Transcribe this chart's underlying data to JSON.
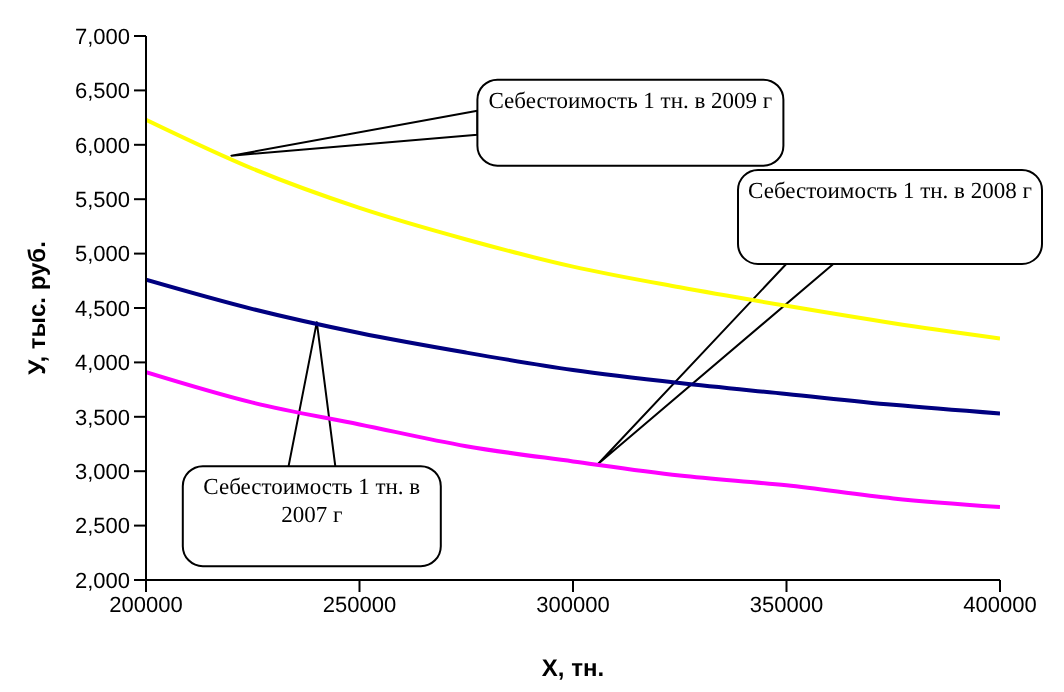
{
  "chart_data": {
    "type": "line",
    "xlabel": "Х, тн.",
    "ylabel": "У, тыс. руб.",
    "x": [
      200000,
      225000,
      250000,
      275000,
      300000,
      325000,
      350000,
      375000,
      400000
    ],
    "series": [
      {
        "color": "#ffff00",
        "values": [
          6230,
          5780,
          5420,
          5130,
          4880,
          4690,
          4520,
          4360,
          4220
        ]
      },
      {
        "color": "#000080",
        "values": [
          4760,
          4490,
          4270,
          4090,
          3930,
          3810,
          3710,
          3610,
          3530
        ]
      },
      {
        "color": "#ff00ff",
        "values": [
          3910,
          3630,
          3430,
          3230,
          3090,
          2960,
          2870,
          2750,
          2670
        ]
      }
    ],
    "xlim": [
      200000,
      400000
    ],
    "xticks": [
      200000,
      250000,
      300000,
      350000,
      400000
    ],
    "ylim": [
      2000,
      7000
    ],
    "yticks": [
      {
        "value": 2000,
        "label": "2,000"
      },
      {
        "value": 2500,
        "label": "2,500"
      },
      {
        "value": 3000,
        "label": "3,000"
      },
      {
        "value": 3500,
        "label": "3,500"
      },
      {
        "value": 4000,
        "label": "4,000"
      },
      {
        "value": 4500,
        "label": "4,500"
      },
      {
        "value": 5000,
        "label": "5,000"
      },
      {
        "value": 5500,
        "label": "5,500"
      },
      {
        "value": 6000,
        "label": "6,000"
      },
      {
        "value": 6500,
        "label": "6,500"
      },
      {
        "value": 7000,
        "label": "7,000"
      }
    ],
    "grid": false,
    "legend": false,
    "marker": "none",
    "line_style": "solid",
    "annotations": [
      {
        "text": "Себестоимость 1 тн. в 2009 г",
        "x": 220000,
        "y": 5900
      },
      "Себестоимость 1 тн. в 2008 г",
      {
        "text": "Себестоимость 1 тн. в 2007 г",
        "x": 240000,
        "y": 4370
      }
    ]
  }
}
